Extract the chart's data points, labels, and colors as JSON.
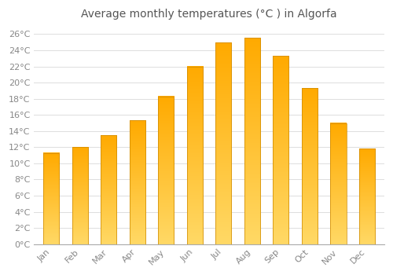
{
  "title": "Average monthly temperatures (°C ) in Algorfa",
  "months": [
    "Jan",
    "Feb",
    "Mar",
    "Apr",
    "May",
    "Jun",
    "Jul",
    "Aug",
    "Sep",
    "Oct",
    "Nov",
    "Dec"
  ],
  "values": [
    11.3,
    12.0,
    13.5,
    15.3,
    18.3,
    22.0,
    25.0,
    25.6,
    23.3,
    19.3,
    15.0,
    11.8
  ],
  "bar_color_top": "#FFAA00",
  "bar_color_bottom": "#FFD966",
  "bar_edge_color": "#CC8800",
  "background_color": "#FFFFFF",
  "plot_bg_color": "#FFFFFF",
  "grid_color": "#DDDDDD",
  "ylim": [
    0,
    27
  ],
  "ytick_step": 2,
  "title_fontsize": 10,
  "tick_fontsize": 8,
  "label_color": "#888888"
}
